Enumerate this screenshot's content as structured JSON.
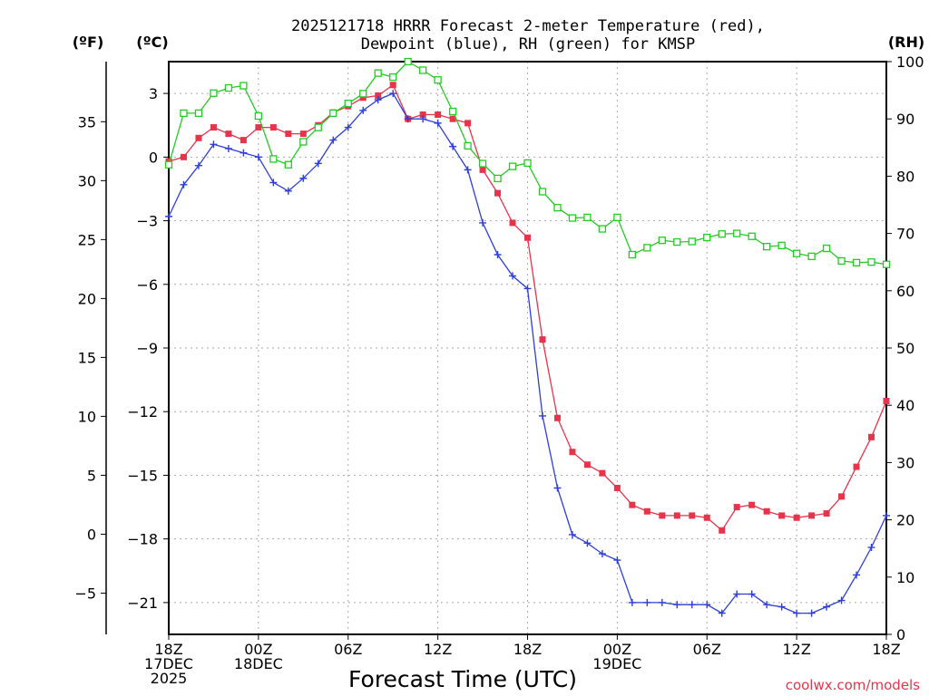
{
  "chart_data": {
    "type": "line",
    "title_line1": "2025121718 HRRR Forecast 2-meter Temperature (red),",
    "title_line2": "Dewpoint (blue), RH (green) for KMSP",
    "units": {
      "fahrenheit": "(ºF)",
      "celsius": "(ºC)",
      "rh": "(RH)"
    },
    "xlabel": "Forecast Time (UTC)",
    "credit": "coolwx.com/models",
    "x_range_hours": [
      0,
      48
    ],
    "y_celsius_range": [
      -22.5,
      4.5
    ],
    "y_rh_range": [
      0,
      100
    ],
    "celsius_ticks": [
      {
        "v": 3,
        "label": "3"
      },
      {
        "v": 0,
        "label": "0"
      },
      {
        "v": -3,
        "label": "−3"
      },
      {
        "v": -6,
        "label": "−6"
      },
      {
        "v": -9,
        "label": "−9"
      },
      {
        "v": -12,
        "label": "−12"
      },
      {
        "v": -15,
        "label": "−15"
      },
      {
        "v": -18,
        "label": "−18"
      },
      {
        "v": -21,
        "label": "−21"
      }
    ],
    "fahrenheit_ticks": [
      {
        "v": 35,
        "label": "35"
      },
      {
        "v": 30,
        "label": "30"
      },
      {
        "v": 25,
        "label": "25"
      },
      {
        "v": 20,
        "label": "20"
      },
      {
        "v": 15,
        "label": "15"
      },
      {
        "v": 10,
        "label": "10"
      },
      {
        "v": 5,
        "label": "5"
      },
      {
        "v": 0,
        "label": "0"
      },
      {
        "v": -5,
        "label": "−5"
      }
    ],
    "rh_ticks": [
      {
        "v": 100,
        "label": "100"
      },
      {
        "v": 90,
        "label": "90"
      },
      {
        "v": 80,
        "label": "80"
      },
      {
        "v": 70,
        "label": "70"
      },
      {
        "v": 60,
        "label": "60"
      },
      {
        "v": 50,
        "label": "50"
      },
      {
        "v": 40,
        "label": "40"
      },
      {
        "v": 30,
        "label": "30"
      },
      {
        "v": 20,
        "label": "20"
      },
      {
        "v": 10,
        "label": "10"
      },
      {
        "v": 0,
        "label": "0"
      }
    ],
    "x_ticks": [
      {
        "h": 0,
        "lines": [
          "18Z",
          "17DEC",
          "2025"
        ]
      },
      {
        "h": 6,
        "lines": [
          "00Z",
          "18DEC"
        ]
      },
      {
        "h": 12,
        "lines": [
          "06Z"
        ]
      },
      {
        "h": 18,
        "lines": [
          "12Z"
        ]
      },
      {
        "h": 24,
        "lines": [
          "18Z"
        ]
      },
      {
        "h": 30,
        "lines": [
          "00Z",
          "19DEC"
        ]
      },
      {
        "h": 36,
        "lines": [
          "06Z"
        ]
      },
      {
        "h": 42,
        "lines": [
          "12Z"
        ]
      },
      {
        "h": 48,
        "lines": [
          "18Z"
        ]
      }
    ],
    "series": [
      {
        "name": "Temperature",
        "axis": "celsius",
        "color": "#e8334a",
        "marker": "filled-square",
        "values": [
          -0.2,
          0,
          0.9,
          1.4,
          1.1,
          0.8,
          1.4,
          1.4,
          1.1,
          1.1,
          1.5,
          2.1,
          2.4,
          2.8,
          2.9,
          3.4,
          1.8,
          2.0,
          2.0,
          1.8,
          1.6,
          -0.6,
          -1.7,
          -3.1,
          -3.8,
          -8.6,
          -12.3,
          -13.9,
          -14.5,
          -14.9,
          -15.6,
          -16.4,
          -16.7,
          -16.9,
          -16.9,
          -16.9,
          -17.0,
          -17.6,
          -16.5,
          -16.4,
          -16.7,
          -16.9,
          -17.0,
          -16.9,
          -16.8,
          -16.0,
          -14.6,
          -13.2,
          -11.5
        ]
      },
      {
        "name": "Dewpoint",
        "axis": "celsius",
        "color": "#2e3fd9",
        "marker": "plus",
        "values": [
          -2.8,
          -1.3,
          -0.4,
          0.6,
          0.4,
          0.2,
          0.0,
          -1.2,
          -1.6,
          -1.0,
          -0.3,
          0.8,
          1.4,
          2.2,
          2.7,
          3.0,
          1.8,
          1.8,
          1.6,
          0.5,
          -0.6,
          -3.1,
          -4.6,
          -5.6,
          -6.2,
          -12.2,
          -15.6,
          -17.8,
          -18.2,
          -18.7,
          -19.0,
          -21.0,
          -21.0,
          -21.0,
          -21.1,
          -21.1,
          -21.1,
          -21.5,
          -20.6,
          -20.6,
          -21.1,
          -21.2,
          -21.5,
          -21.5,
          -21.2,
          -20.9,
          -19.7,
          -18.4,
          -16.9
        ]
      },
      {
        "name": "RH",
        "axis": "rh",
        "color": "#22cc22",
        "marker": "open-square",
        "values": [
          82,
          91,
          91,
          94.5,
          95.4,
          95.8,
          90.5,
          83,
          82,
          86,
          88.5,
          91,
          92.7,
          94.4,
          98,
          97.3,
          100,
          98.5,
          96.8,
          91.3,
          85.3,
          82.2,
          79.6,
          81.7,
          82.3,
          77.3,
          74.5,
          72.7,
          72.8,
          70.8,
          72.8,
          66.3,
          67.5,
          68.8,
          68.5,
          68.6,
          69.3,
          69.9,
          70.0,
          69.5,
          67.7,
          67.9,
          66.5,
          66.0,
          67.4,
          65.2,
          64.9,
          65.0,
          64.6
        ]
      }
    ]
  }
}
